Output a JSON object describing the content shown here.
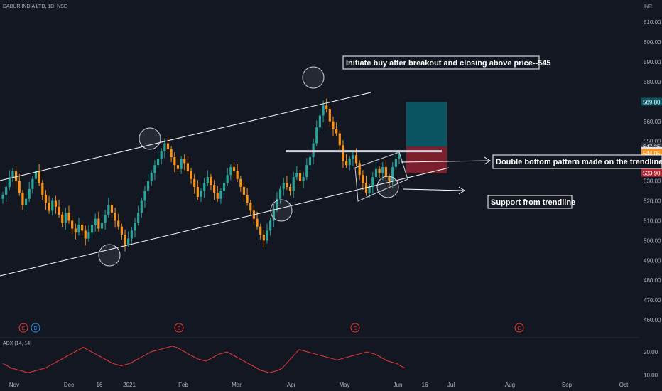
{
  "header": {
    "symbol": "DABUR INDIA LTD, 1D, NSE",
    "currency": "INR"
  },
  "colors": {
    "background": "#131722",
    "up": "#26a69a",
    "down": "#f7931a",
    "channel": "#ffffff",
    "target_zone": "#0b5563",
    "stop_zone": "#7a1f2b",
    "adx": "#e53935",
    "earnings": "#e53935",
    "dividend": "#2196f3"
  },
  "chart_data": [
    {
      "type": "candlestick",
      "title": "DABUR INDIA LTD, 1D, NSE",
      "ylim": [
        455,
        614
      ],
      "y_ticks": [
        "610.00",
        "600.00",
        "590.00",
        "580.00",
        "570.00",
        "560.00",
        "550.00",
        "540.00",
        "530.00",
        "520.00",
        "510.00",
        "500.00",
        "490.00",
        "480.00",
        "470.00",
        "460.00"
      ],
      "x_ticks": [
        "Nov",
        "Dec",
        "16",
        "2021",
        "Feb",
        "Mar",
        "Apr",
        "May",
        "Jun",
        "16",
        "Jul",
        "Aug",
        "Sep",
        "Oct"
      ],
      "price_labels": [
        {
          "value": 569.8,
          "text": "569.80",
          "kind": "target"
        },
        {
          "value": 547.25,
          "text": "547.25",
          "kind": "neutral"
        },
        {
          "value": 544.95,
          "text": "544.95",
          "kind": "light"
        },
        {
          "value": 544.05,
          "text": "544.05",
          "kind": "current"
        },
        {
          "value": 533.9,
          "text": "533.90",
          "kind": "stop"
        }
      ],
      "closes": [
        523,
        527,
        532,
        535,
        530,
        524,
        518,
        521,
        526,
        531,
        535,
        529,
        523,
        519,
        515,
        520,
        517,
        513,
        509,
        514,
        510,
        506,
        504,
        508,
        505,
        501,
        504,
        508,
        511,
        506,
        509,
        513,
        518,
        514,
        510,
        507,
        503,
        498,
        501,
        505,
        509,
        514,
        520,
        525,
        530,
        534,
        538,
        541,
        545,
        549,
        546,
        542,
        538,
        536,
        541,
        539,
        535,
        531,
        527,
        522,
        525,
        529,
        532,
        528,
        524,
        521,
        525,
        529,
        533,
        537,
        535,
        531,
        527,
        523,
        519,
        515,
        511,
        507,
        503,
        500,
        505,
        510,
        516,
        521,
        526,
        529,
        527,
        525,
        532,
        534,
        530,
        532,
        538,
        542,
        549,
        557,
        563,
        568,
        566,
        560,
        556,
        554,
        548,
        540,
        538,
        541,
        543,
        539,
        533,
        529,
        524,
        527,
        532,
        536,
        534,
        537,
        532,
        530,
        537,
        541,
        544
      ],
      "levels": {
        "breakout": 545,
        "target": 569.8,
        "entry": 547.25,
        "stop": 533.9
      },
      "markers": {
        "earnings": [
          "E",
          "E",
          "E",
          "E"
        ],
        "dividend": [
          "D"
        ]
      }
    },
    {
      "type": "line",
      "title": "ADX (14, 14)",
      "ylim": [
        8,
        24
      ],
      "y_ticks": [
        "20.00",
        "10.00"
      ],
      "series": [
        {
          "name": "ADX (14, 14)",
          "values": [
            15,
            14,
            13,
            12.5,
            12,
            11.5,
            11,
            11.5,
            12,
            12.5,
            13,
            14,
            15,
            16,
            17,
            18,
            19,
            20,
            21,
            22,
            21,
            20,
            19,
            18,
            17,
            16,
            15,
            14.5,
            14,
            14.5,
            15,
            16,
            17,
            18,
            19,
            20,
            20.5,
            21,
            21.5,
            22,
            22.5,
            22,
            21,
            20,
            19,
            18,
            17,
            16.5,
            16,
            17,
            18,
            19,
            19.5,
            20,
            19,
            18,
            17,
            16,
            15,
            14,
            13,
            12,
            11.5,
            11,
            11.5,
            12,
            13,
            15,
            17,
            19,
            21,
            20.5,
            20,
            19.5,
            19,
            18.5,
            18,
            17.5,
            17,
            16.5,
            17,
            17.5,
            18,
            18.5,
            19,
            19.5,
            20,
            19.5,
            19,
            18,
            17,
            16,
            15.5,
            15,
            14,
            13
          ]
        }
      ]
    }
  ],
  "annotations": {
    "buy": "Initiate buy after breakout and closing above price--545",
    "double_bottom": "Double bottom pattern made on the trendline",
    "support": "Support from trendline"
  }
}
